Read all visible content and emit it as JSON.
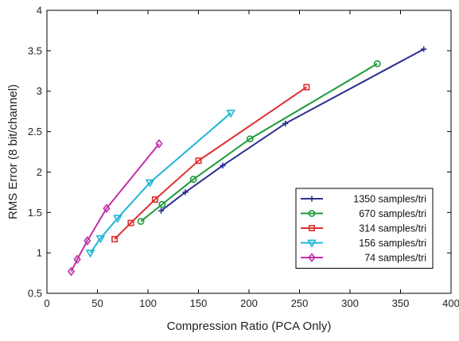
{
  "chart_data": {
    "type": "line",
    "title": "",
    "xlabel": "Compression Ratio (PCA Only)",
    "ylabel": "RMS Error (8 bit/channel)",
    "xlim": [
      0,
      400
    ],
    "ylim": [
      0.5,
      4
    ],
    "xticks": [
      0,
      50,
      100,
      150,
      200,
      250,
      300,
      350,
      400
    ],
    "yticks": [
      0.5,
      1,
      1.5,
      2,
      2.5,
      3,
      3.5,
      4
    ],
    "xtick_labels": [
      "0",
      "50",
      "100",
      "150",
      "200",
      "250",
      "300",
      "350",
      "400"
    ],
    "ytick_labels": [
      "0.5",
      "1",
      "1.5",
      "2",
      "2.5",
      "3",
      "3.5",
      "4"
    ],
    "grid": false,
    "legend_position": "bottom-right",
    "series": [
      {
        "name": "1350 samples/tri",
        "color": "#2b2f8f",
        "marker": "plus",
        "x": [
          113,
          137,
          174,
          236,
          373
        ],
        "y": [
          1.52,
          1.75,
          2.08,
          2.6,
          3.52
        ]
      },
      {
        "name": "670 samples/tri",
        "color": "#1f9a3a",
        "marker": "circle",
        "x": [
          93,
          114,
          145,
          201,
          327
        ],
        "y": [
          1.39,
          1.6,
          1.91,
          2.41,
          3.34
        ]
      },
      {
        "name": "314 samples/tri",
        "color": "#e0302e",
        "marker": "square",
        "x": [
          67,
          83,
          107,
          150,
          257
        ],
        "y": [
          1.17,
          1.37,
          1.66,
          2.14,
          3.05
        ]
      },
      {
        "name": "156 samples/tri",
        "color": "#1fb6d6",
        "marker": "triangle-down",
        "x": [
          43,
          53,
          70,
          102,
          182
        ],
        "y": [
          1.0,
          1.18,
          1.43,
          1.87,
          2.73
        ]
      },
      {
        "name": "74 samples/tri",
        "color": "#c02fa8",
        "marker": "diamond",
        "x": [
          24,
          30,
          40,
          59,
          111
        ],
        "y": [
          0.77,
          0.92,
          1.15,
          1.55,
          2.35
        ]
      }
    ]
  }
}
